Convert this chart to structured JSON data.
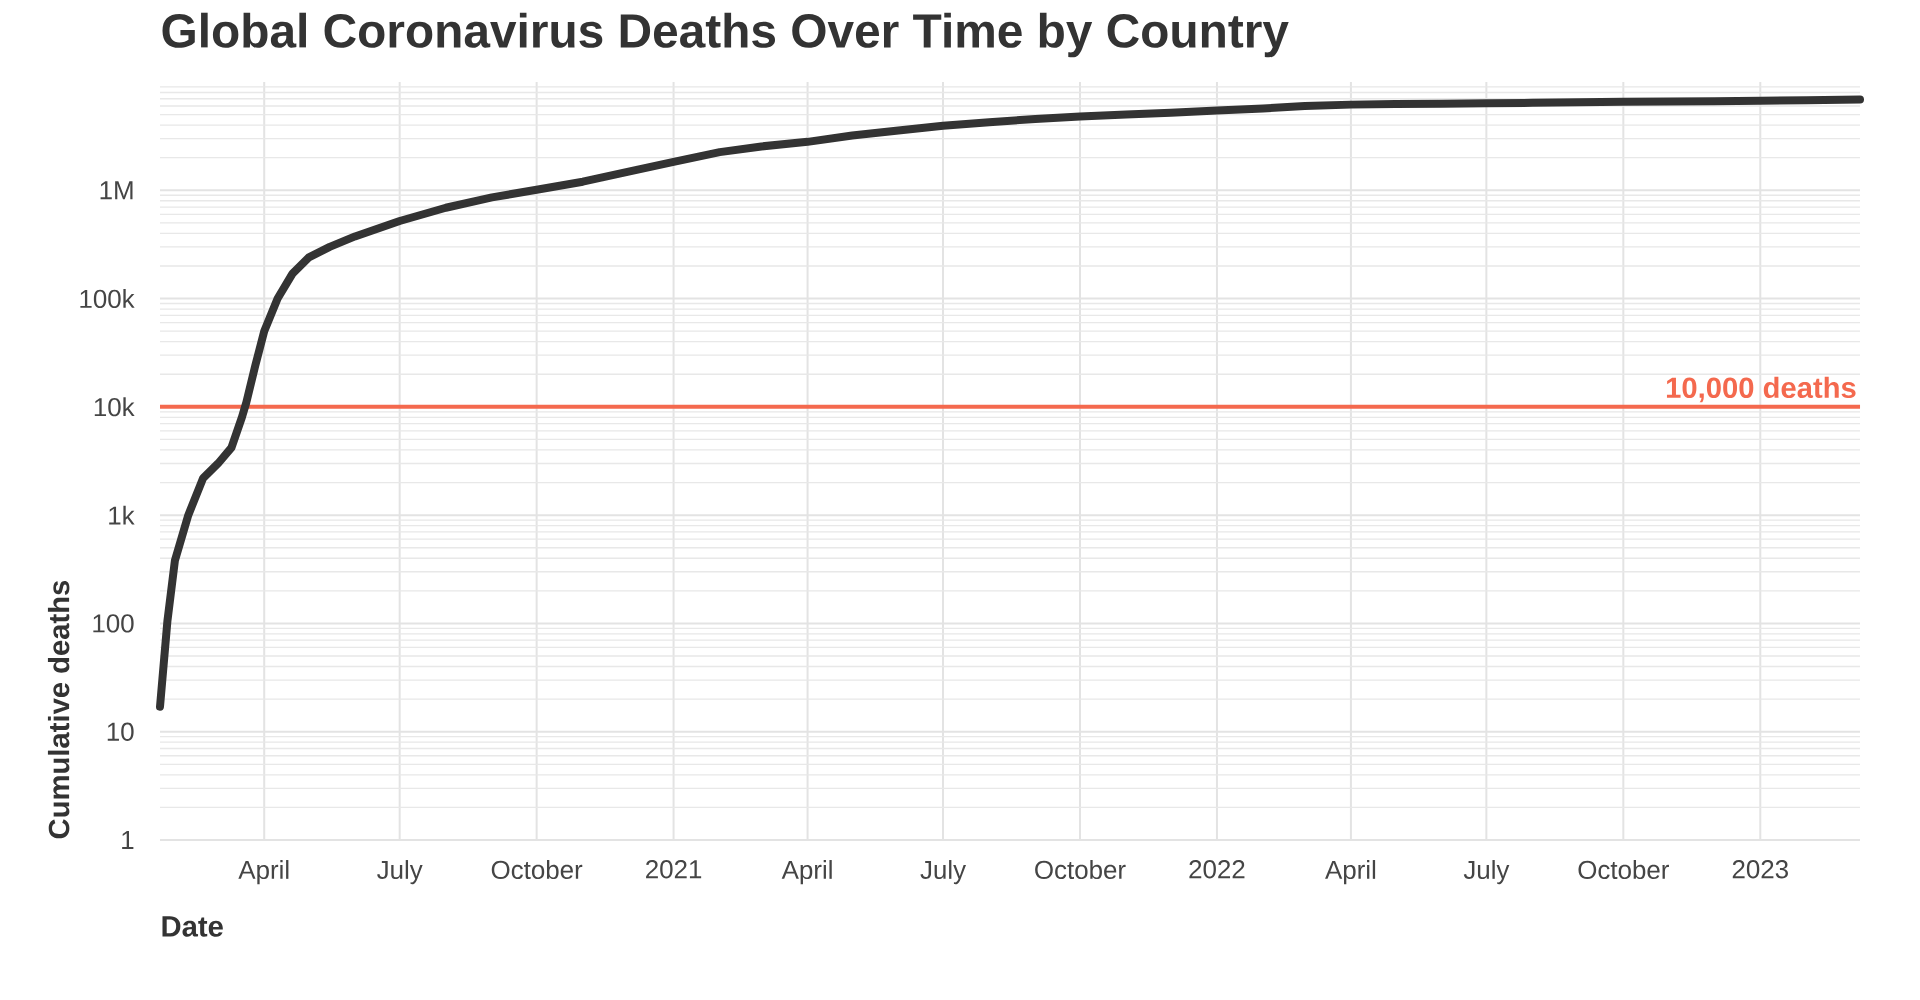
{
  "chart_data": {
    "type": "line",
    "title": "Global Coronavirus Deaths Over Time by Country",
    "xlabel": "Date",
    "ylabel": "Cumulative deaths",
    "x": [
      "2020-01-22",
      "2020-01-27",
      "2020-02-01",
      "2020-02-10",
      "2020-02-20",
      "2020-03-01",
      "2020-03-10",
      "2020-03-17",
      "2020-03-20",
      "2020-03-26",
      "2020-04-01",
      "2020-04-10",
      "2020-04-20",
      "2020-05-01",
      "2020-05-15",
      "2020-06-01",
      "2020-07-01",
      "2020-08-01",
      "2020-09-01",
      "2020-10-01",
      "2020-11-01",
      "2020-12-01",
      "2021-01-01",
      "2021-02-01",
      "2021-03-01",
      "2021-04-01",
      "2021-05-01",
      "2021-06-01",
      "2021-07-01",
      "2021-08-01",
      "2021-09-01",
      "2021-10-01",
      "2021-11-01",
      "2021-12-01",
      "2022-01-01",
      "2022-02-01",
      "2022-03-01",
      "2022-04-01",
      "2022-05-01",
      "2022-06-01",
      "2022-07-01",
      "2022-08-01",
      "2022-09-01",
      "2022-10-01",
      "2022-11-01",
      "2022-12-01",
      "2023-01-01",
      "2023-02-01",
      "2023-03-09"
    ],
    "series": [
      {
        "color": "#333333",
        "values": [
          17,
          106,
          380,
          1000,
          2200,
          3000,
          4200,
          8000,
          11000,
          24000,
          50000,
          100000,
          170000,
          240000,
          300000,
          375000,
          520000,
          690000,
          860000,
          1010000,
          1200000,
          1480000,
          1830000,
          2250000,
          2540000,
          2800000,
          3200000,
          3560000,
          3950000,
          4250000,
          4550000,
          4800000,
          5000000,
          5200000,
          5450000,
          5700000,
          6000000,
          6180000,
          6260000,
          6310000,
          6350000,
          6420000,
          6500000,
          6560000,
          6600000,
          6640000,
          6700000,
          6800000,
          6880000
        ]
      }
    ],
    "xlim": [
      "2020-01-22",
      "2023-03-09"
    ],
    "xticks": [
      {
        "value": "2020-04-01",
        "label": "April"
      },
      {
        "value": "2020-07-01",
        "label": "July"
      },
      {
        "value": "2020-10-01",
        "label": "October"
      },
      {
        "value": "2021-01-01",
        "label": "2021"
      },
      {
        "value": "2021-04-01",
        "label": "April"
      },
      {
        "value": "2021-07-01",
        "label": "July"
      },
      {
        "value": "2021-10-01",
        "label": "October"
      },
      {
        "value": "2022-01-01",
        "label": "2022"
      },
      {
        "value": "2022-04-01",
        "label": "April"
      },
      {
        "value": "2022-07-01",
        "label": "July"
      },
      {
        "value": "2022-10-01",
        "label": "October"
      },
      {
        "value": "2023-01-01",
        "label": "2023"
      }
    ],
    "ylim": [
      1,
      10000000
    ],
    "yticks": [
      1,
      10,
      100,
      {
        "value": 1000,
        "label": "1k"
      },
      {
        "value": 10000,
        "label": "10k"
      },
      {
        "value": 100000,
        "label": "100k"
      },
      {
        "value": 1000000,
        "label": "1M"
      }
    ],
    "log": "y",
    "grid": true,
    "line_style": "solid",
    "ref_lines": [
      {
        "axis": "y",
        "value": 10000,
        "label": "10,000 deaths",
        "color": "#f4694e"
      }
    ]
  }
}
